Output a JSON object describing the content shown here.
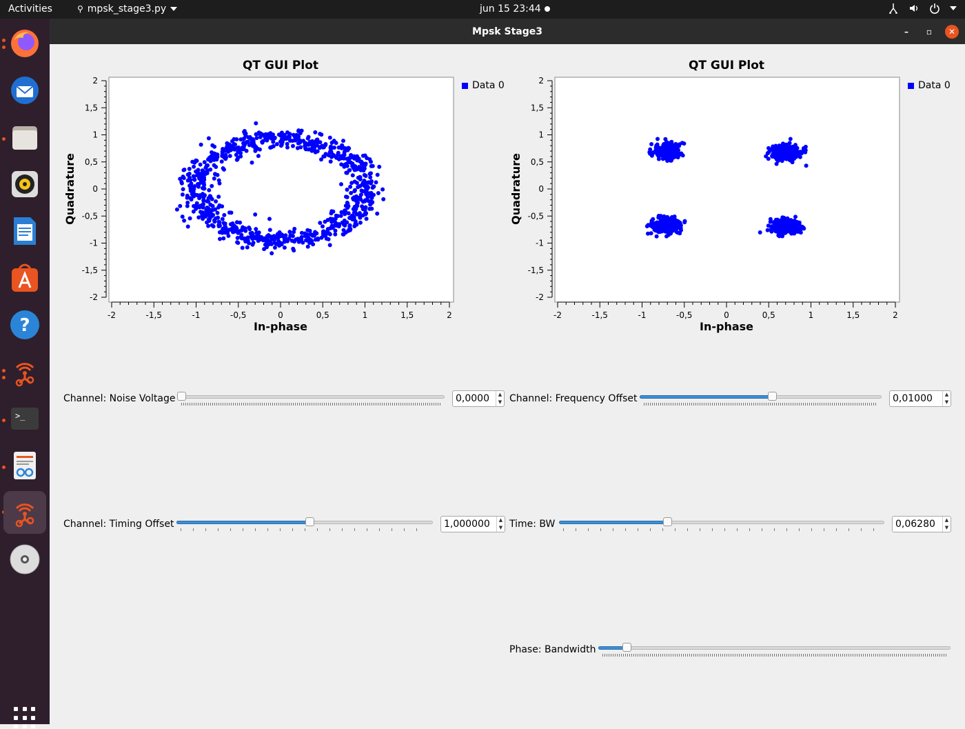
{
  "topbar": {
    "activities": "Activities",
    "app_name": "mpsk_stage3.py",
    "clock": "jun 15  23:44"
  },
  "dock": {
    "items": [
      "firefox-icon",
      "thunderbird-icon",
      "files-icon",
      "rhythmbox-icon",
      "writer-icon",
      "software-icon",
      "help-icon",
      "gnuradio-icon",
      "terminal-icon",
      "document-viewer-icon",
      "gnuradio-icon",
      "dvd-icon"
    ],
    "show_apps": "show-applications-icon"
  },
  "window": {
    "title": "Mpsk Stage3",
    "controls": {
      "minimize": "–",
      "maximize": "▫",
      "close": "✕"
    }
  },
  "plots": [
    {
      "title": "QT GUI Plot",
      "legend": "Data 0",
      "xlabel": "In-phase",
      "ylabel": "Quadrature"
    },
    {
      "title": "QT GUI Plot",
      "legend": "Data 0",
      "xlabel": "In-phase",
      "ylabel": "Quadrature"
    }
  ],
  "chart_data": [
    {
      "type": "scatter",
      "title": "QT GUI Plot",
      "xlabel": "In-phase",
      "ylabel": "Quadrature",
      "xlim": [
        -2,
        2
      ],
      "ylim": [
        -2,
        2
      ],
      "xticks": [
        "-2",
        "-1,5",
        "-1",
        "-0,5",
        "0",
        "0,5",
        "1",
        "1,5",
        "2"
      ],
      "yticks": [
        "2",
        "1,5",
        "1",
        "0,5",
        "0",
        "-0,5",
        "-1",
        "-1,5",
        "-2"
      ],
      "legend": "top-right",
      "series": [
        {
          "name": "Data 0",
          "color": "#0000ff",
          "shape": "ring",
          "center": [
            0.0,
            0.0
          ],
          "radius_x": 1.0,
          "radius_y": 0.95,
          "spread": 0.1,
          "count": 900
        }
      ]
    },
    {
      "type": "scatter",
      "title": "QT GUI Plot",
      "xlabel": "In-phase",
      "ylabel": "Quadrature",
      "xlim": [
        -2,
        2
      ],
      "ylim": [
        -2,
        2
      ],
      "xticks": [
        "-2",
        "-1,5",
        "-1",
        "-0,5",
        "0",
        "0,5",
        "1",
        "1,5",
        "2"
      ],
      "yticks": [
        "2",
        "1,5",
        "1",
        "0,5",
        "0",
        "-0,5",
        "-1",
        "-1,5",
        "-2"
      ],
      "legend": "top-right",
      "series": [
        {
          "name": "Data 0",
          "color": "#0000ff",
          "shape": "clusters",
          "centers": [
            [
              -0.7,
              0.7
            ],
            [
              0.7,
              0.67
            ],
            [
              -0.7,
              -0.67
            ],
            [
              0.7,
              -0.7
            ]
          ],
          "spread": 0.09,
          "count_per_cluster": 230
        }
      ]
    }
  ],
  "controls": {
    "noise_voltage": {
      "label": "Channel: Noise Voltage",
      "value": "0,0000",
      "fraction": 0.0
    },
    "frequency_offset": {
      "label": "Channel: Frequency Offset",
      "value": "0,01000",
      "fraction": 0.55
    },
    "timing_offset": {
      "label": "Channel: Timing Offset",
      "value": "1,000000",
      "fraction": 0.52
    },
    "time_bw": {
      "label": "Time: BW",
      "value": "0,06280",
      "fraction": 0.33
    },
    "phase_bw": {
      "label": "Phase: Bandwidth",
      "fraction": 0.07
    }
  }
}
